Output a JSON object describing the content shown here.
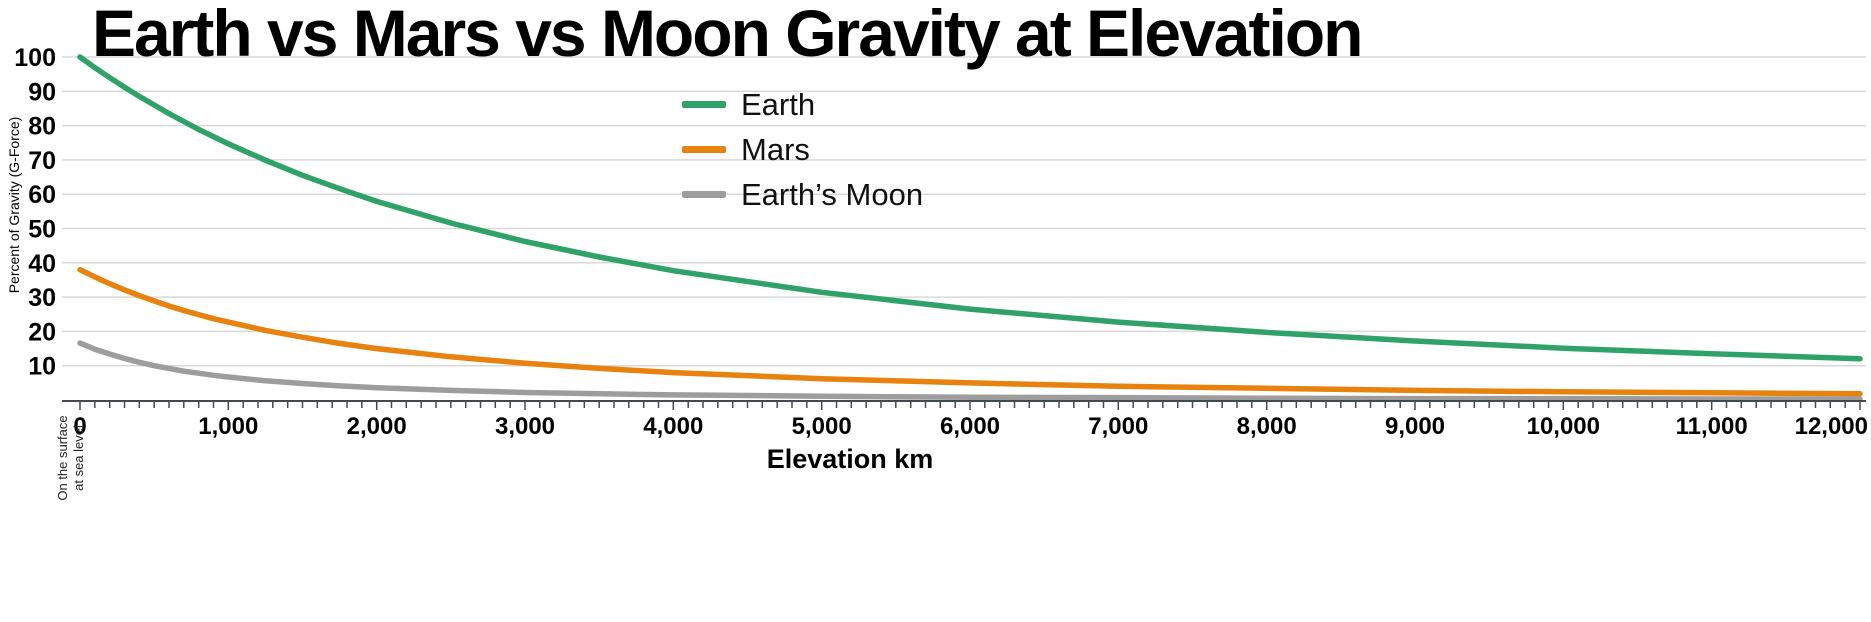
{
  "chart_data": {
    "type": "line",
    "title": "Earth vs Mars vs Moon Gravity at Elevation",
    "xlabel": "Elevation km",
    "ylabel": "Percent of Gravity (G-Force)",
    "annotation_lines": [
      "On the surface",
      "at sea level"
    ],
    "grid": "horizontal",
    "legend_position": "top-center-inside",
    "xlim": [
      0,
      12000
    ],
    "ylim": [
      0,
      100
    ],
    "x_tick_step": 1000,
    "x_minor_tick_step": 100,
    "x_ticks": [
      0,
      1000,
      2000,
      3000,
      4000,
      5000,
      6000,
      7000,
      8000,
      9000,
      10000,
      11000,
      12000
    ],
    "x_tick_labels": [
      "0",
      "1,000",
      "2,000",
      "3,000",
      "4,000",
      "5,000",
      "6,000",
      "7,000",
      "8,000",
      "9,000",
      "10,000",
      "11,000",
      "12,000"
    ],
    "y_ticks": [
      10,
      20,
      30,
      40,
      50,
      60,
      70,
      80,
      90,
      100
    ],
    "y_tick_labels": [
      "10",
      "20",
      "30",
      "40",
      "50",
      "60",
      "70",
      "80",
      "90",
      "100"
    ],
    "grid_color": "#d9d9d9",
    "axis_color": "#44484f",
    "x": [
      0,
      100,
      200,
      300,
      400,
      500,
      600,
      700,
      800,
      900,
      1000,
      1250,
      1500,
      1750,
      2000,
      2500,
      3000,
      3500,
      4000,
      5000,
      6000,
      7000,
      8000,
      9000,
      10000,
      11000,
      12000
    ],
    "series": [
      {
        "name": "Earth",
        "color": "#2FA268",
        "values": [
          100,
          96.9,
          94,
          91.2,
          88.5,
          86,
          83.5,
          81.2,
          78.9,
          76.8,
          74.7,
          69.9,
          65.5,
          61.6,
          57.9,
          51.6,
          46.2,
          41.7,
          37.7,
          31.4,
          26.5,
          22.7,
          19.7,
          17.2,
          15.1,
          13.5,
          12
        ]
      },
      {
        "name": "Mars",
        "color": "#E8820E",
        "values": [
          38,
          35.9,
          33.9,
          32.1,
          30.4,
          28.9,
          27.4,
          26.1,
          24.9,
          23.7,
          22.7,
          20.3,
          18.3,
          16.5,
          15,
          12.6,
          10.7,
          9.2,
          8,
          6.2,
          5,
          4,
          3.4,
          2.8,
          2.4,
          2.1,
          1.8
        ]
      },
      {
        "name": "Earth’s Moon",
        "color": "#9D9D9D",
        "values": [
          16.6,
          14.8,
          13.4,
          12.1,
          11,
          10,
          9.2,
          8.4,
          7.8,
          7.2,
          6.7,
          5.6,
          4.8,
          4.1,
          3.6,
          2.8,
          2.2,
          1.8,
          1.5,
          1.1,
          0.8,
          0.7,
          0.5,
          0.4,
          0.4,
          0.3,
          0.3
        ]
      }
    ]
  }
}
